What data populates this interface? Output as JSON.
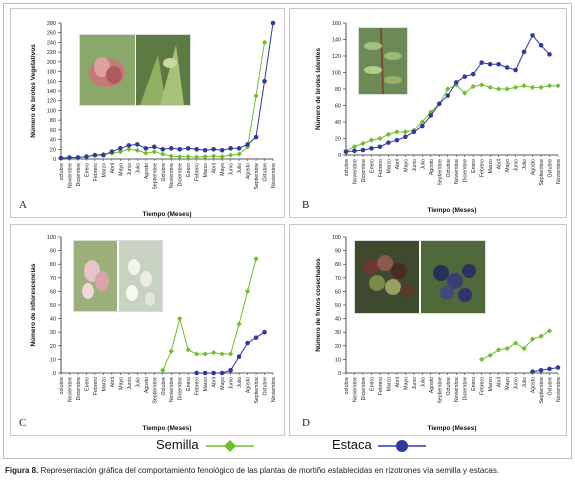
{
  "caption": {
    "label": "Figura 8.",
    "text": " Representación gráfica del comportamiento fenológico de las plantas de mortiño establecidas en rizotrones vía semilla y estacas."
  },
  "legend": {
    "semilla": "Semilla",
    "estaca": "Estaca"
  },
  "colors": {
    "semilla": "#6fbf2a",
    "estaca": "#2f3a9e"
  },
  "chart_data": [
    {
      "panel": "A",
      "type": "line",
      "ylabel": "Número de brotes Vegetativos",
      "xlabel": "Tiempo (Meses)",
      "ylim": [
        0,
        280
      ],
      "yticks": [
        0,
        20,
        40,
        60,
        80,
        100,
        120,
        140,
        160,
        180,
        200,
        220,
        240,
        260,
        280
      ],
      "categories": [
        "octubre",
        "Noviembre",
        "Diciembre",
        "Enero",
        "Febrero",
        "Marzo",
        "Abril",
        "Mayo",
        "Junio",
        "Julio",
        "Agosto",
        "Septiembre",
        "Octubre",
        "Noviembre",
        "Diciembre",
        "Enero",
        "Febrero",
        "Marzo",
        "Abril",
        "Mayo",
        "Junio",
        "Julio",
        "Agosto",
        "Septiembre",
        "Octubre",
        "Noviembre"
      ],
      "series": [
        {
          "name": "Semilla",
          "values": [
            2,
            2,
            3,
            5,
            8,
            10,
            12,
            15,
            20,
            18,
            12,
            15,
            10,
            6,
            5,
            5,
            4,
            5,
            6,
            5,
            8,
            10,
            25,
            130,
            240,
            null
          ]
        },
        {
          "name": "Estaca",
          "values": [
            2,
            3,
            3,
            5,
            8,
            8,
            15,
            22,
            28,
            30,
            22,
            25,
            20,
            22,
            20,
            22,
            20,
            18,
            20,
            18,
            22,
            22,
            30,
            45,
            160,
            280
          ]
        }
      ]
    },
    {
      "panel": "B",
      "type": "line",
      "ylabel": "Número de brotes latentes",
      "xlabel": "Tiempo (Meses)",
      "ylim": [
        0,
        160
      ],
      "yticks": [
        0,
        20,
        40,
        60,
        80,
        100,
        120,
        140,
        160
      ],
      "categories": [
        "octubre",
        "Noviembre",
        "Diciembre",
        "Enero",
        "Febrero",
        "Marzo",
        "Abril",
        "Mayo",
        "Junio",
        "Julio",
        "Agosto",
        "Septiembre",
        "Octubre",
        "Noviembre",
        "Diciembre",
        "Enero",
        "Febrero",
        "Marzo",
        "Abril",
        "Mayo",
        "Junio",
        "Julio",
        "Agosto",
        "Septiembre",
        "Octubre",
        "Noviembre"
      ],
      "series": [
        {
          "name": "Semilla",
          "values": [
            5,
            10,
            14,
            18,
            20,
            25,
            28,
            28,
            30,
            40,
            52,
            62,
            80,
            85,
            75,
            83,
            85,
            82,
            80,
            80,
            82,
            84,
            82,
            82,
            84,
            84
          ]
        },
        {
          "name": "Estaca",
          "values": [
            4,
            5,
            6,
            8,
            10,
            15,
            18,
            22,
            28,
            35,
            48,
            62,
            72,
            88,
            95,
            98,
            112,
            110,
            110,
            106,
            103,
            125,
            145,
            133,
            122,
            null
          ]
        }
      ]
    },
    {
      "panel": "C",
      "type": "line",
      "ylabel": "Número de inflorescencias",
      "xlabel": "Tiempo (Meses)",
      "ylim": [
        0,
        100
      ],
      "yticks": [
        0,
        10,
        20,
        30,
        40,
        50,
        60,
        70,
        80,
        90,
        100
      ],
      "categories": [
        "octubre",
        "Noviembre",
        "Diciembre",
        "Enero",
        "Febrero",
        "Marzo",
        "Abril",
        "Mayo",
        "Junio",
        "Julio",
        "Agosto",
        "Septiembre",
        "Octubre",
        "Noviembre",
        "Diciembre",
        "Enero",
        "Febrero",
        "Marzo",
        "Abril",
        "Mayo",
        "Junio",
        "Julio",
        "Agosto",
        "Septiembre",
        "Octubre",
        "Noviembre"
      ],
      "series": [
        {
          "name": "Semilla",
          "values": [
            null,
            null,
            null,
            null,
            null,
            null,
            null,
            null,
            null,
            null,
            null,
            null,
            2,
            16,
            40,
            17,
            14,
            14,
            15,
            14,
            14,
            36,
            60,
            84,
            null,
            null
          ]
        },
        {
          "name": "Estaca",
          "values": [
            null,
            null,
            null,
            null,
            null,
            null,
            null,
            null,
            null,
            null,
            null,
            null,
            null,
            null,
            null,
            null,
            0,
            0,
            0,
            0,
            2,
            12,
            22,
            26,
            30,
            null
          ]
        }
      ]
    },
    {
      "panel": "D",
      "type": "line",
      "ylabel": "Número de frutos cosechados",
      "xlabel": "Tiempo (Meses)",
      "ylim": [
        0,
        100
      ],
      "yticks": [
        0,
        10,
        20,
        30,
        40,
        50,
        60,
        70,
        80,
        90,
        100
      ],
      "categories": [
        "octubre",
        "Noviembre",
        "Diciembre",
        "Enero",
        "Febrero",
        "Marzo",
        "Abril",
        "Mayo",
        "Junio",
        "Julio",
        "Agosto",
        "Septiembre",
        "Octubre",
        "Noviembre",
        "Diciembre",
        "Enero",
        "Febrero",
        "Marzo",
        "Abril",
        "Mayo",
        "Junio",
        "Julio",
        "Agosto",
        "Septiembre",
        "Octubre",
        "Noviembre"
      ],
      "series": [
        {
          "name": "Semilla",
          "values": [
            null,
            null,
            null,
            null,
            null,
            null,
            null,
            null,
            null,
            null,
            null,
            null,
            null,
            null,
            null,
            null,
            10,
            13,
            17,
            18,
            22,
            18,
            25,
            27,
            31,
            null
          ]
        },
        {
          "name": "Estaca",
          "values": [
            null,
            null,
            null,
            null,
            null,
            null,
            null,
            null,
            null,
            null,
            null,
            null,
            null,
            null,
            null,
            null,
            null,
            null,
            null,
            null,
            null,
            null,
            1,
            2,
            3,
            4
          ]
        }
      ]
    }
  ]
}
